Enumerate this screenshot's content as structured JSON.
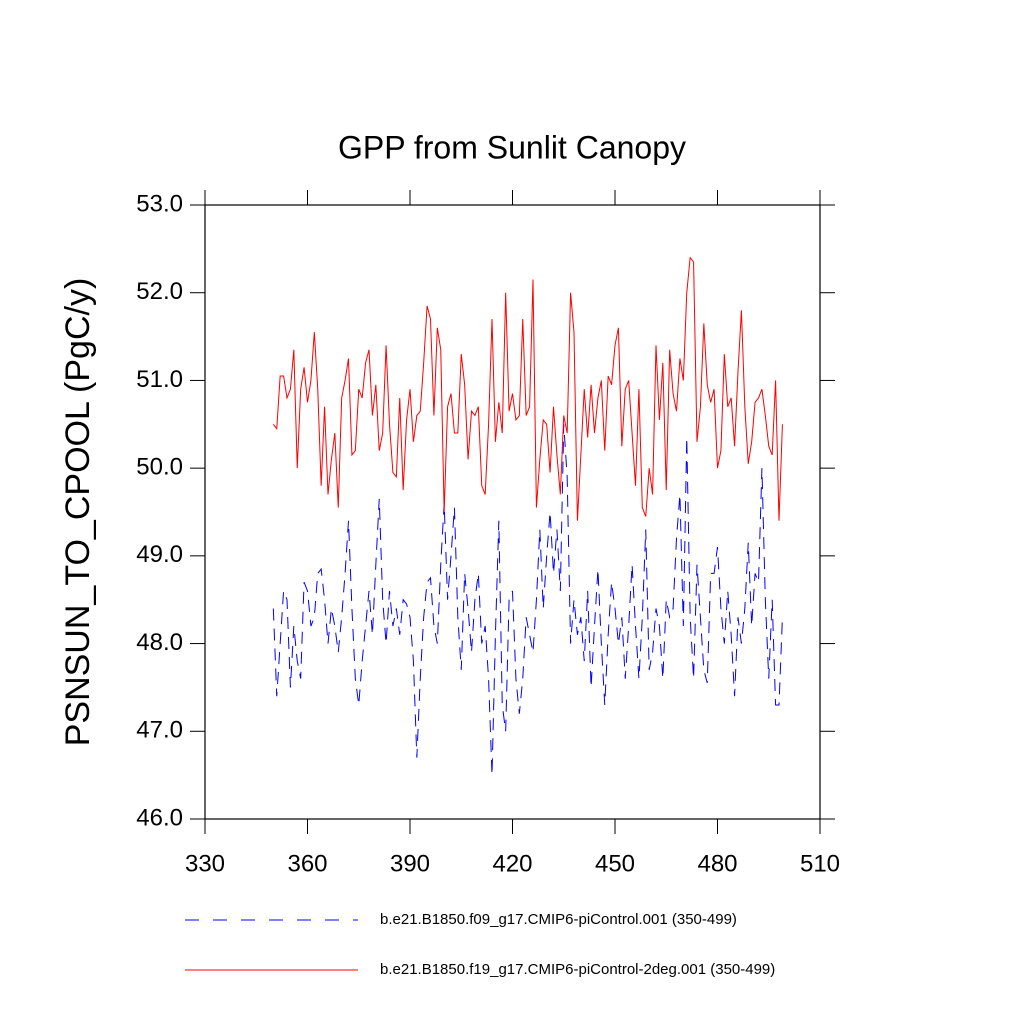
{
  "chart_data": {
    "type": "line",
    "title": "GPP from Sunlit Canopy",
    "y_label": "PSNSUN_TO_CPOOL  (PgC/y)",
    "x": [
      350,
      351,
      352,
      353,
      354,
      355,
      356,
      357,
      358,
      359,
      360,
      361,
      362,
      363,
      364,
      365,
      366,
      367,
      368,
      369,
      370,
      371,
      372,
      373,
      374,
      375,
      376,
      377,
      378,
      379,
      380,
      381,
      382,
      383,
      384,
      385,
      386,
      387,
      388,
      389,
      390,
      391,
      392,
      393,
      394,
      395,
      396,
      397,
      398,
      399,
      400,
      401,
      402,
      403,
      404,
      405,
      406,
      407,
      408,
      409,
      410,
      411,
      412,
      413,
      414,
      415,
      416,
      417,
      418,
      419,
      420,
      421,
      422,
      423,
      424,
      425,
      426,
      427,
      428,
      429,
      430,
      431,
      432,
      433,
      434,
      435,
      436,
      437,
      438,
      439,
      440,
      441,
      442,
      443,
      444,
      445,
      446,
      447,
      448,
      449,
      450,
      451,
      452,
      453,
      454,
      455,
      456,
      457,
      458,
      459,
      460,
      461,
      462,
      463,
      464,
      465,
      466,
      467,
      468,
      469,
      470,
      471,
      472,
      473,
      474,
      475,
      476,
      477,
      478,
      479,
      480,
      481,
      482,
      483,
      484,
      485,
      486,
      487,
      488,
      489,
      490,
      491,
      492,
      493,
      494,
      495,
      496,
      497,
      498,
      499
    ],
    "series": [
      {
        "name": "b.e21.B1850.f09_g17.CMIP6-piControl.001 (350-499)",
        "color": "#0000ff",
        "dashed": true,
        "values": [
          48.4,
          47.4,
          48.0,
          48.6,
          48.5,
          47.5,
          48.2,
          47.8,
          47.6,
          48.7,
          48.6,
          48.2,
          48.3,
          48.8,
          48.85,
          48.5,
          48.0,
          48.4,
          48.2,
          47.9,
          48.3,
          48.8,
          49.4,
          48.4,
          47.6,
          47.3,
          47.8,
          48.2,
          48.6,
          48.1,
          48.9,
          49.65,
          48.5,
          48.0,
          48.6,
          48.2,
          48.4,
          48.1,
          48.5,
          48.45,
          48.3,
          47.8,
          46.7,
          47.6,
          48.3,
          48.7,
          48.75,
          48.2,
          48.0,
          48.9,
          49.6,
          48.5,
          49.0,
          49.55,
          48.3,
          47.7,
          48.8,
          48.4,
          47.9,
          48.5,
          48.8,
          48.0,
          48.2,
          47.6,
          46.5,
          48.1,
          49.4,
          47.3,
          47.0,
          48.5,
          48.6,
          47.6,
          47.2,
          47.6,
          48.3,
          48.1,
          47.9,
          48.5,
          49.3,
          48.4,
          49.0,
          49.5,
          48.8,
          49.3,
          48.6,
          50.5,
          49.9,
          48.0,
          48.5,
          48.1,
          48.3,
          47.8,
          48.6,
          47.5,
          48.2,
          48.85,
          48.0,
          47.3,
          48.1,
          48.7,
          48.4,
          48.0,
          48.3,
          47.6,
          48.2,
          48.9,
          48.2,
          47.6,
          48.3,
          49.3,
          47.7,
          47.9,
          48.4,
          48.2,
          47.6,
          48.5,
          48.3,
          48.4,
          49.2,
          49.7,
          48.2,
          50.35,
          48.3,
          47.6,
          48.9,
          48.3,
          47.7,
          47.55,
          48.8,
          48.8,
          49.1,
          48.4,
          48.0,
          48.6,
          48.1,
          47.4,
          48.3,
          48.0,
          48.4,
          49.15,
          48.2,
          48.8,
          48.7,
          50.0,
          48.5,
          47.6,
          48.5,
          47.3,
          47.3,
          48.3
        ]
      },
      {
        "name": "b.e21.B1850.f19_g17.CMIP6-piControl-2deg.001 (350-499)",
        "color": "#ff0000",
        "dashed": false,
        "values": [
          50.5,
          50.45,
          51.05,
          51.05,
          50.8,
          50.9,
          51.35,
          50.0,
          50.9,
          51.15,
          50.75,
          51.0,
          51.55,
          50.9,
          49.8,
          50.7,
          49.7,
          50.1,
          50.4,
          49.55,
          50.8,
          51.0,
          51.25,
          50.15,
          50.2,
          50.9,
          50.8,
          51.2,
          51.35,
          50.6,
          50.95,
          50.2,
          50.4,
          51.4,
          50.5,
          49.95,
          49.9,
          50.8,
          49.75,
          50.55,
          50.9,
          50.3,
          50.6,
          50.65,
          51.2,
          51.85,
          51.7,
          50.6,
          51.6,
          51.35,
          49.5,
          50.7,
          50.85,
          50.4,
          50.4,
          51.3,
          50.95,
          50.1,
          50.65,
          50.6,
          50.7,
          49.8,
          49.7,
          50.5,
          51.7,
          50.3,
          50.75,
          50.4,
          52.0,
          50.65,
          50.85,
          50.55,
          50.6,
          51.7,
          50.6,
          50.7,
          52.15,
          49.55,
          50.1,
          50.55,
          50.5,
          49.95,
          50.7,
          50.15,
          49.7,
          50.6,
          50.4,
          52.0,
          51.55,
          49.4,
          50.15,
          50.9,
          50.35,
          50.95,
          50.4,
          50.8,
          51.0,
          50.2,
          51.05,
          50.95,
          51.4,
          51.6,
          50.25,
          50.9,
          51.0,
          50.4,
          49.8,
          50.9,
          49.55,
          49.45,
          50.0,
          49.7,
          51.4,
          50.55,
          51.2,
          49.75,
          51.35,
          50.85,
          50.65,
          51.25,
          51.0,
          52.0,
          52.4,
          52.35,
          50.3,
          50.7,
          51.65,
          50.95,
          50.75,
          50.9,
          50.0,
          50.2,
          51.3,
          50.7,
          50.8,
          50.25,
          51.1,
          51.8,
          50.7,
          50.05,
          50.3,
          50.75,
          50.8,
          50.9,
          50.6,
          50.25,
          50.15,
          51.0,
          49.4,
          50.5
        ]
      }
    ],
    "xlim": [
      330,
      510
    ],
    "xticks": [
      330,
      360,
      390,
      420,
      450,
      480,
      510
    ],
    "ylim": [
      46,
      53
    ],
    "yticks": [
      {
        "value": 46,
        "label": "46.0"
      },
      {
        "value": 47,
        "label": "47.0"
      },
      {
        "value": 48,
        "label": "48.0"
      },
      {
        "value": 49,
        "label": "49.0"
      },
      {
        "value": 50,
        "label": "50.0"
      },
      {
        "value": 51,
        "label": "51.0"
      },
      {
        "value": 52,
        "label": "52.0"
      },
      {
        "value": 53,
        "label": "53.0"
      }
    ],
    "grid": false
  }
}
